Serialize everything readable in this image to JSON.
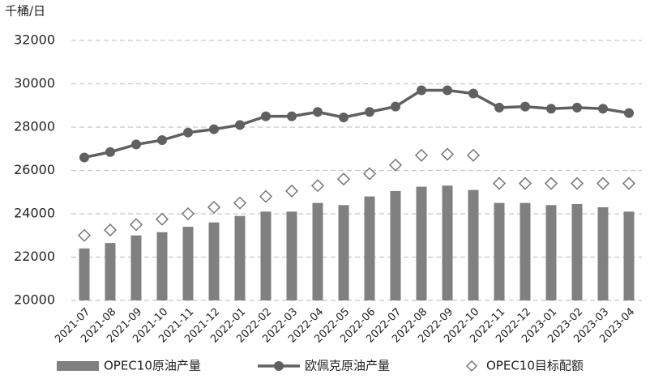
{
  "chart_data": {
    "type": "bar",
    "y_label": "千桶/日",
    "categories": [
      "2021-07",
      "2021-08",
      "2021-09",
      "2021-10",
      "2021-11",
      "2021-12",
      "2022-01",
      "2022-02",
      "2022-03",
      "2022-04",
      "2022-05",
      "2022-06",
      "2022-07",
      "2022-08",
      "2022-09",
      "2022-10",
      "2022-11",
      "2022-12",
      "2023-01",
      "2023-02",
      "2023-03",
      "2023-04"
    ],
    "series": [
      {
        "name": "OPEC10原油产量",
        "type": "bar",
        "color": "#808080",
        "values": [
          22400,
          22650,
          23000,
          23150,
          23400,
          23600,
          23900,
          24100,
          24100,
          24500,
          24400,
          24800,
          25050,
          25250,
          25300,
          25100,
          24500,
          24500,
          24400,
          24450,
          24300,
          24100
        ]
      },
      {
        "name": "欧佩克原油产量",
        "type": "line",
        "color": "#606060",
        "values": [
          26600,
          26850,
          27200,
          27400,
          27750,
          27900,
          28100,
          28500,
          28500,
          28700,
          28450,
          28700,
          28950,
          29700,
          29700,
          29550,
          28900,
          28950,
          28850,
          28900,
          28850,
          28650
        ]
      },
      {
        "name": "OPEC10目标配额",
        "type": "scatter",
        "color": "#777777",
        "values": [
          23000,
          23250,
          23500,
          23750,
          24000,
          24300,
          24500,
          24800,
          25050,
          25300,
          25600,
          25850,
          26250,
          26700,
          26750,
          26700,
          25400,
          25400,
          25400,
          25400,
          25400,
          25400
        ]
      }
    ],
    "ylim": [
      20000,
      32000
    ],
    "yticks": [
      20000,
      22000,
      24000,
      26000,
      28000,
      30000,
      32000
    ],
    "grid": true
  }
}
